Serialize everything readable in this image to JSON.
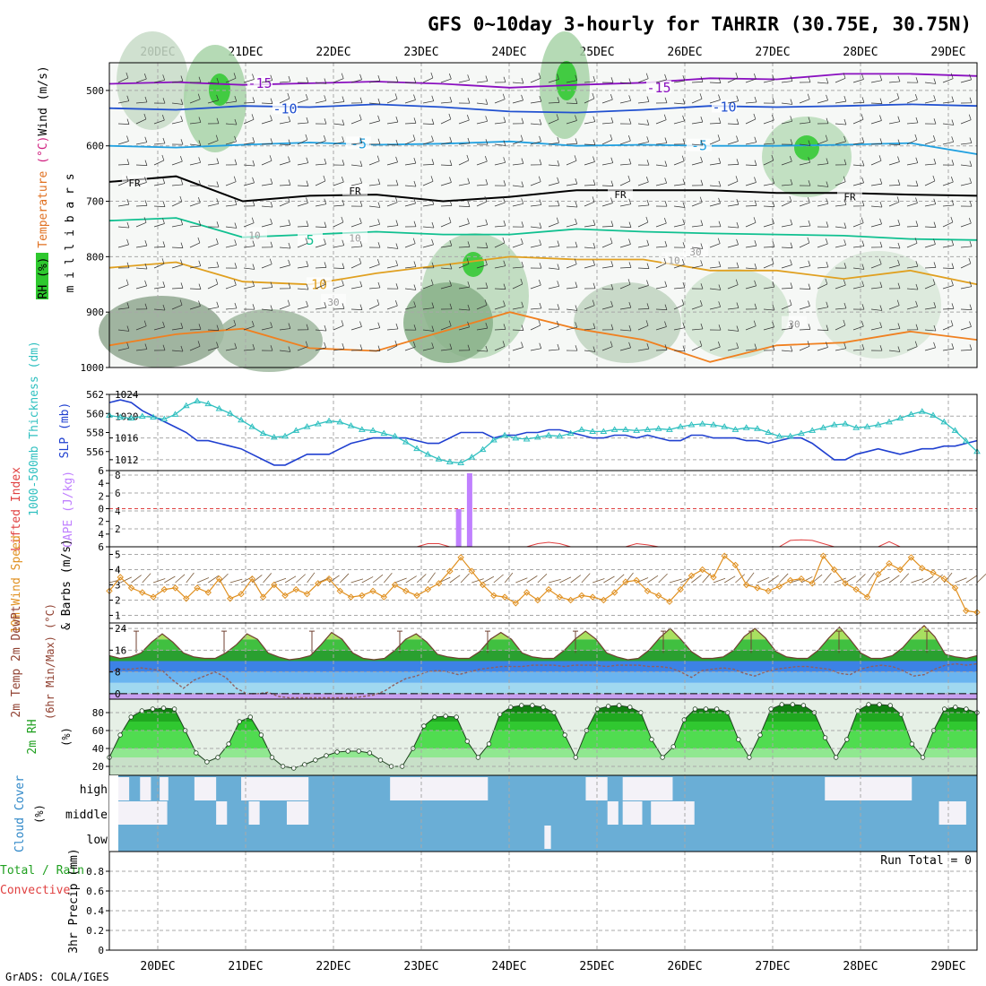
{
  "title": "GFS 0~10day 3-hourly for TAHRIR (30.75E, 30.75N)",
  "credit": "GrADS: COLA/IGES",
  "dates": [
    "20DEC",
    "21DEC",
    "22DEC",
    "23DEC",
    "24DEC",
    "25DEC",
    "26DEC",
    "27DEC",
    "28DEC",
    "29DEC"
  ],
  "colors": {
    "rh_green": "#2ec82e",
    "bg_rh": "#e6f0e6",
    "sfc_temp_green": "#3cb43c",
    "cloud_blue": "#6aaed6",
    "cloud_white": "#f4f2f8",
    "cape_purple": "#c080ff",
    "li_red": "#e04040",
    "slp_blue": "#2040d0",
    "thick_cyan": "#30c0c0",
    "wind_orange": "#e09020"
  },
  "chart_data": [
    {
      "type": "line",
      "id": "upper-air",
      "labels": {
        "wind": "Wind (m/s)",
        "temperature": "Temperature (°C)",
        "rh": "RH (%)",
        "yaxis": "m i l l i b a r s"
      },
      "ylim": [
        1000,
        450
      ],
      "yticks": [
        500,
        600,
        700,
        800,
        900,
        1000
      ],
      "isotherm_labels": [
        "-15",
        "-15",
        "-10",
        "-10",
        "-5",
        "-5",
        "FR",
        "FR",
        "FR",
        "FR",
        "5",
        "10",
        "10",
        "10",
        "10",
        "30",
        "30",
        "30"
      ],
      "isotherms": [
        {
          "name": "-15",
          "values": [
            488,
            485,
            490,
            487,
            484,
            488,
            495,
            490,
            486,
            478,
            480,
            470,
            470,
            474
          ]
        },
        {
          "name": "-10",
          "values": [
            532,
            535,
            528,
            530,
            525,
            530,
            538,
            540,
            535,
            528,
            530,
            528,
            525,
            528
          ]
        },
        {
          "name": "-5",
          "values": [
            600,
            603,
            598,
            594,
            598,
            596,
            592,
            600,
            598,
            600,
            600,
            598,
            595,
            615
          ]
        },
        {
          "name": "FR",
          "values": [
            665,
            655,
            700,
            690,
            688,
            700,
            692,
            680,
            680,
            680,
            685,
            685,
            688,
            690
          ]
        },
        {
          "name": "5",
          "values": [
            735,
            730,
            765,
            760,
            755,
            760,
            760,
            750,
            755,
            758,
            760,
            762,
            768,
            770
          ]
        },
        {
          "name": "10",
          "values": [
            820,
            810,
            845,
            850,
            830,
            815,
            800,
            805,
            805,
            825,
            825,
            840,
            825,
            850
          ]
        }
      ]
    },
    {
      "type": "line",
      "id": "slp-thickness",
      "labels": {
        "left": "1000-500mb Thickness (dm)",
        "right": "SLP (mb)"
      },
      "thickness_ticks": [
        "556",
        "558",
        "560",
        "562"
      ],
      "slp_ticks": [
        "1012",
        "1016",
        "1020",
        "1024"
      ],
      "thickness_ylim": [
        554,
        562
      ],
      "slp_ylim": [
        1010,
        1024
      ],
      "slp": [
        1022.5,
        1023,
        1022.5,
        1021,
        1020,
        1019,
        1018,
        1017,
        1015.5,
        1015.5,
        1015,
        1014.5,
        1014,
        1013,
        1012,
        1011,
        1011,
        1012,
        1013,
        1013,
        1013,
        1014,
        1015,
        1015.5,
        1016,
        1016,
        1016,
        1016,
        1015.5,
        1015,
        1015,
        1016,
        1017,
        1017,
        1017,
        1016,
        1016.5,
        1016.5,
        1017,
        1017,
        1017.5,
        1017.5,
        1017,
        1016.5,
        1016,
        1016,
        1016.5,
        1016.5,
        1016,
        1016.5,
        1016,
        1015.5,
        1015.5,
        1016.5,
        1016.5,
        1016,
        1016,
        1016,
        1015.5,
        1015.5,
        1015,
        1015.5,
        1016,
        1016,
        1015,
        1013.5,
        1012,
        1012,
        1013,
        1013.5,
        1014,
        1013.5,
        1013,
        1013.5,
        1014,
        1014,
        1014.5,
        1014.5,
        1015,
        1015.5
      ],
      "thickness": [
        559.8,
        559.6,
        559.5,
        559.7,
        559.6,
        559.4,
        559.9,
        560.8,
        561.3,
        561,
        560.5,
        560,
        559.3,
        558.6,
        557.9,
        557.5,
        557.6,
        558.2,
        558.6,
        558.9,
        559.2,
        559.1,
        558.7,
        558.3,
        558.2,
        557.9,
        557.6,
        557,
        556.3,
        555.7,
        555.2,
        554.9,
        554.8,
        555.4,
        556.2,
        557.2,
        557.7,
        557.4,
        557.3,
        557.5,
        557.7,
        557.6,
        557.9,
        558.3,
        558.1,
        558.1,
        558.3,
        558.3,
        558.2,
        558.3,
        558.4,
        558.3,
        558.6,
        558.8,
        558.9,
        558.8,
        558.6,
        558.3,
        558.5,
        558.4,
        558,
        557.6,
        557.6,
        557.9,
        558.2,
        558.5,
        558.8,
        558.9,
        558.5,
        558.6,
        558.8,
        559.1,
        559.5,
        559.9,
        560.2,
        559.8,
        559.1,
        558.2,
        557.1,
        556
      ]
    },
    {
      "type": "bar",
      "id": "cape-li",
      "labels": {
        "left": "Lifted Index",
        "right": "CAPE (J/kg)"
      },
      "li_ticks": [
        "-6",
        "-4",
        "-2",
        "0",
        "2",
        "4",
        "6"
      ],
      "cape_ticks": [
        "2",
        "4",
        "6",
        "8"
      ],
      "cape_ylim": [
        0,
        8
      ],
      "cape_bars": [
        {
          "x": 31.8,
          "value": 4.2
        },
        {
          "x": 32.8,
          "value": 8.2
        }
      ],
      "li_values": [
        6,
        6,
        6,
        6,
        6,
        6,
        6,
        6,
        6,
        6,
        6,
        6,
        6,
        6,
        6,
        6,
        6,
        6,
        6,
        6,
        6,
        6,
        6,
        6,
        6,
        6,
        6,
        6,
        6,
        5.5,
        5.5,
        6,
        6,
        6,
        6,
        6,
        6,
        6,
        6,
        5.5,
        5.3,
        5.5,
        6,
        6,
        6,
        6,
        6,
        6,
        5.5,
        5.7,
        6,
        6,
        6,
        6,
        6,
        6,
        6,
        6,
        6,
        6,
        6,
        6,
        5,
        4.9,
        5,
        5.5,
        6,
        6,
        6,
        6,
        6,
        5.2,
        6,
        6,
        6,
        6,
        6,
        6,
        6,
        6
      ]
    },
    {
      "type": "line",
      "id": "wind10m",
      "labels": {
        "left": "10m Wind Speed",
        "right": "& Barbs (m/s)"
      },
      "yticks": [
        "1",
        "2",
        "3",
        "4",
        "5"
      ],
      "ylim": [
        0.5,
        5.5
      ],
      "values": [
        2.6,
        3.5,
        2.8,
        2.5,
        2.2,
        2.7,
        2.8,
        2.1,
        2.8,
        2.5,
        3.4,
        2.1,
        2.4,
        3.4,
        2.2,
        3.0,
        2.3,
        2.7,
        2.4,
        3.1,
        3.4,
        2.6,
        2.2,
        2.3,
        2.6,
        2.2,
        3.0,
        2.6,
        2.3,
        2.7,
        3.1,
        3.9,
        4.8,
        3.9,
        3.0,
        2.3,
        2.2,
        1.8,
        2.5,
        2.0,
        2.7,
        2.2,
        2.0,
        2.3,
        2.2,
        2.0,
        2.5,
        3.2,
        3.3,
        2.6,
        2.3,
        1.9,
        2.7,
        3.6,
        4.0,
        3.5,
        4.9,
        4.3,
        3.0,
        2.8,
        2.6,
        2.9,
        3.3,
        3.4,
        3.1,
        4.9,
        4.0,
        3.1,
        2.7,
        2.2,
        3.7,
        4.4,
        4.0,
        4.8,
        4.1,
        3.8,
        3.4,
        2.8,
        1.3,
        1.2
      ]
    },
    {
      "type": "area",
      "id": "temp2m",
      "labels": {
        "left": "2m Temp 2m DewPt",
        "right": "(6hr Min/Max) (°C)"
      },
      "yticks": [
        "0",
        "8",
        "16",
        "24"
      ],
      "ylim": [
        -2,
        26
      ],
      "temp": [
        14,
        13,
        13.5,
        15,
        19,
        22,
        19,
        15,
        13.5,
        13,
        13,
        15,
        18,
        22,
        20,
        15,
        13.5,
        12.5,
        13,
        14,
        18,
        22.5,
        20,
        15,
        13,
        12.5,
        13,
        16,
        20,
        22,
        19,
        14.5,
        13.5,
        13,
        13,
        15.5,
        20,
        22.5,
        20,
        15,
        13.5,
        13,
        13,
        16,
        20,
        23,
        20,
        15,
        13.5,
        12.5,
        13,
        16,
        20.5,
        24,
        20,
        15.5,
        13,
        13,
        13.5,
        16,
        21,
        24,
        20.5,
        15.5,
        13.5,
        13,
        13,
        16,
        20.5,
        24.5,
        20,
        15,
        13,
        13,
        14,
        17,
        21.5,
        25,
        21,
        14.5,
        13.5,
        13,
        14
      ],
      "dewpt": [
        8,
        9,
        9,
        9.5,
        9,
        8.5,
        5,
        2,
        5,
        6.5,
        8,
        6,
        2,
        0,
        0,
        0.5,
        -1,
        -1.5,
        -1.5,
        -1.5,
        -1.5,
        -1.5,
        -1.5,
        -1.5,
        -1,
        -0.5,
        1,
        3.5,
        5.5,
        6.5,
        8,
        8.5,
        8,
        7,
        8,
        9,
        9.5,
        10,
        10,
        10,
        10.5,
        10.5,
        10.5,
        10,
        10.5,
        10.5,
        10.5,
        10,
        10.5,
        10.5,
        10.5,
        10,
        10,
        9.5,
        8,
        6,
        8.5,
        9,
        9.5,
        9,
        7.5,
        6.5,
        8,
        9,
        9.5,
        10,
        10,
        9.5,
        9,
        7.5,
        7,
        9,
        10,
        10.5,
        10,
        8.5,
        6.5,
        7,
        9,
        10.5,
        11,
        10.5,
        11
      ]
    },
    {
      "type": "area",
      "id": "rh2m",
      "labels": {
        "left": "2m RH",
        "unit": "(%)"
      },
      "yticks": [
        "20",
        "40",
        "60",
        "80"
      ],
      "ylim": [
        10,
        95
      ],
      "values": [
        30,
        55,
        75,
        82,
        84,
        85,
        84,
        60,
        35,
        25,
        30,
        45,
        70,
        75,
        55,
        30,
        20,
        18,
        22,
        27,
        32,
        36,
        37,
        37,
        35,
        27,
        20,
        20,
        40,
        65,
        75,
        76,
        75,
        48,
        30,
        45,
        78,
        86,
        88,
        88,
        86,
        80,
        55,
        30,
        60,
        84,
        87,
        88,
        86,
        80,
        50,
        30,
        42,
        72,
        84,
        84,
        84,
        80,
        50,
        30,
        55,
        84,
        89,
        89,
        88,
        80,
        52,
        30,
        50,
        82,
        89,
        89,
        88,
        78,
        45,
        30,
        60,
        84,
        86,
        84,
        80
      ]
    },
    {
      "type": "heatmap",
      "id": "cloud-cover",
      "labels": {
        "left": "Cloud Cover",
        "unit": "(%)",
        "levels": [
          "high",
          "middle",
          "low"
        ]
      },
      "high_white_ranges": [
        [
          0,
          1
        ],
        [
          2,
          3
        ],
        [
          3.8,
          4.6
        ],
        [
          7,
          9
        ],
        [
          11.3,
          17.5
        ],
        [
          25,
          34
        ],
        [
          43,
          45
        ],
        [
          46.4,
          51
        ],
        [
          65,
          73
        ],
        [
          80,
          80.1
        ]
      ],
      "middle_white_ranges": [
        [
          0,
          4.5
        ],
        [
          9,
          10
        ],
        [
          12,
          13
        ],
        [
          15.5,
          17.5
        ],
        [
          45,
          46
        ],
        [
          46.4,
          48.2
        ],
        [
          49,
          53
        ],
        [
          75.5,
          78
        ]
      ],
      "low_white_ranges": [
        [
          39.2,
          39.8
        ]
      ]
    },
    {
      "type": "bar",
      "id": "precip",
      "labels": {
        "left": "3hr Precip (mm)",
        "total": "Total / Rain",
        "conv": "Convective",
        "run_total": "Run Total = 0"
      },
      "yticks": [
        "0",
        "0.2",
        "0.4",
        "0.6",
        "0.8"
      ],
      "ylim": [
        0,
        1
      ],
      "values": []
    }
  ]
}
